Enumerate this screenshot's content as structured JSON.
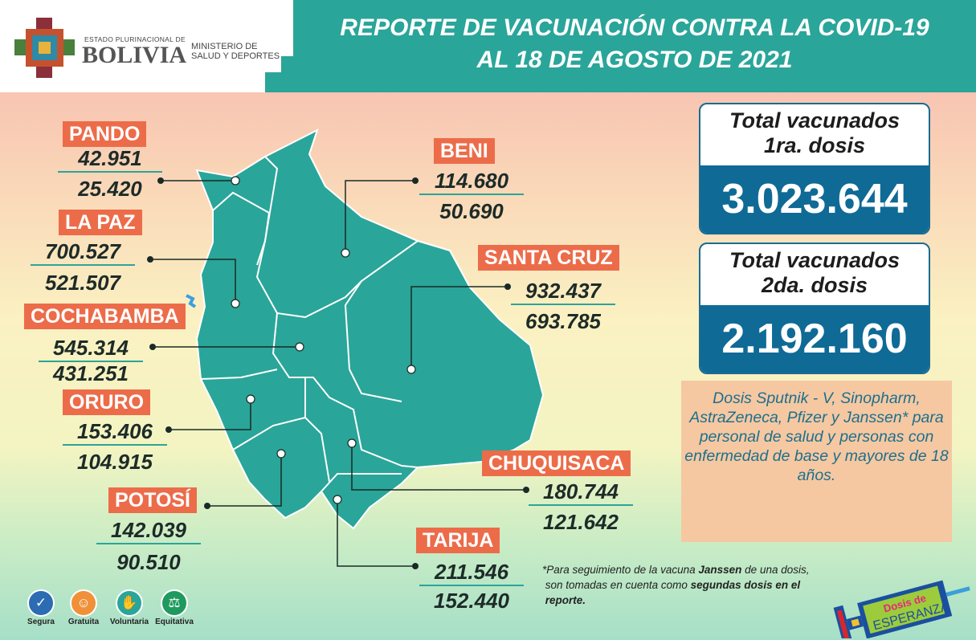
{
  "header": {
    "estado": "ESTADO PLURINACIONAL DE",
    "country": "BOLIVIA",
    "ministry_line1": "MINISTERIO DE",
    "ministry_line2": "SALUD Y DEPORTES",
    "title_line1": "REPORTE DE VACUNACIÓN CONTRA LA COVID-19",
    "title_line2": "AL 18 DE AGOSTO DE 2021"
  },
  "departments": [
    {
      "name": "PANDO",
      "dose1": "42.951",
      "dose2": "25.420"
    },
    {
      "name": "BENI",
      "dose1": "114.680",
      "dose2": "50.690"
    },
    {
      "name": "LA PAZ",
      "dose1": "700.527",
      "dose2": "521.507"
    },
    {
      "name": "SANTA CRUZ",
      "dose1": "932.437",
      "dose2": "693.785"
    },
    {
      "name": "COCHABAMBA",
      "dose1": "545.314",
      "dose2": "431.251"
    },
    {
      "name": "ORURO",
      "dose1": "153.406",
      "dose2": "104.915"
    },
    {
      "name": "CHUQUISACA",
      "dose1": "180.744",
      "dose2": "121.642"
    },
    {
      "name": "POTOSÍ",
      "dose1": "142.039",
      "dose2": "90.510"
    },
    {
      "name": "TARIJA",
      "dose1": "211.546",
      "dose2": "152.440"
    }
  ],
  "totals": {
    "first": {
      "label_line1": "Total vacunados",
      "label_line2": "1ra. dosis",
      "value": "3.023.644"
    },
    "second": {
      "label_line1": "Total vacunados",
      "label_line2": "2da. dosis",
      "value": "2.192.160"
    }
  },
  "info": {
    "text": "Dosis Sputnik - V, Sinopharm, AstraZeneca, Pfizer y Janssen* para personal de salud y personas con enfermedad de base y mayores de 18 años."
  },
  "note": {
    "part1": "*Para seguimiento de la vacuna ",
    "bold1": "Janssen",
    "part2": " de una dosis,",
    "part3": "son tomadas en cuenta como ",
    "bold2": "segundas dosis en el",
    "bold3": "reporte."
  },
  "badges": [
    {
      "label": "Segura",
      "icon": "shield-check-icon",
      "color": "#2b6cb3"
    },
    {
      "label": "Gratuita",
      "icon": "smiley-icon",
      "color": "#f0913a"
    },
    {
      "label": "Voluntaria",
      "icon": "raised-hand-icon",
      "color": "#2aa599"
    },
    {
      "label": "Equitativa",
      "icon": "scales-icon",
      "color": "#1f9a5e"
    }
  ],
  "campaign_logo": {
    "line1": "Dosis de",
    "line2": "ESPERANZA"
  },
  "colors": {
    "teal": "#2aa599",
    "label_orange": "#ec6c4a",
    "total_blue": "#0f6a96",
    "info_bg": "#f5c8a2"
  }
}
